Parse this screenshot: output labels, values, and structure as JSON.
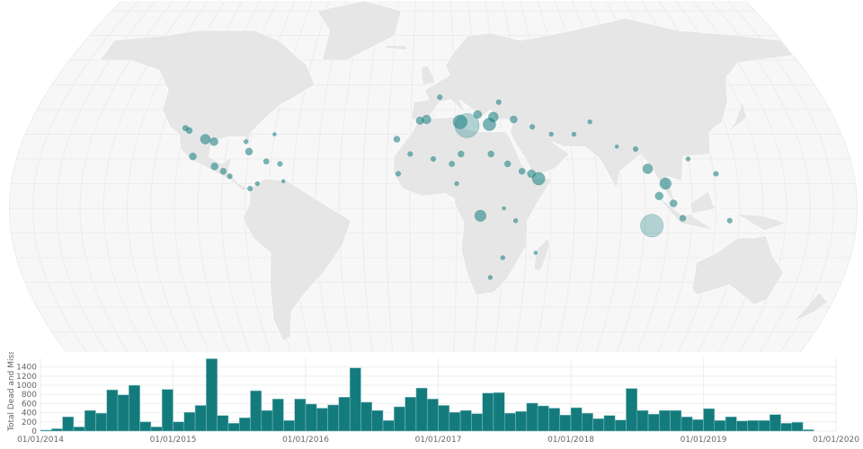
{
  "chart_data": [
    {
      "type": "scatter",
      "subtype": "bubble-map",
      "projection": "robinson",
      "land_color": "#e6e6e6",
      "ocean_color": "#f7f7f7",
      "marker_color": "#147b7d",
      "points": [
        {
          "lon": 15,
          "lat": 33.5,
          "value": 900
        },
        {
          "lon": 12,
          "lat": 35,
          "value": 300
        },
        {
          "lon": 25,
          "lat": 34,
          "value": 250
        },
        {
          "lon": 27,
          "lat": 37,
          "value": 150
        },
        {
          "lon": 20,
          "lat": 38,
          "value": 100
        },
        {
          "lon": -3,
          "lat": 36,
          "value": 120
        },
        {
          "lon": -6,
          "lat": 35.5,
          "value": 90
        },
        {
          "lon": -16,
          "lat": 28,
          "value": 60
        },
        {
          "lon": 3,
          "lat": 45,
          "value": 40
        },
        {
          "lon": 30,
          "lat": 43,
          "value": 40
        },
        {
          "lon": 36,
          "lat": 36,
          "value": 80
        },
        {
          "lon": 44,
          "lat": 33,
          "value": 40
        },
        {
          "lon": 52,
          "lat": 30,
          "value": 30
        },
        {
          "lon": 62,
          "lat": 30,
          "value": 30
        },
        {
          "lon": 70,
          "lat": 35,
          "value": 30
        },
        {
          "lon": 45,
          "lat": 12,
          "value": 250
        },
        {
          "lon": 42,
          "lat": 14,
          "value": 100
        },
        {
          "lon": 38,
          "lat": 15,
          "value": 60
        },
        {
          "lon": 32,
          "lat": 18,
          "value": 60
        },
        {
          "lon": 25,
          "lat": 22,
          "value": 60
        },
        {
          "lon": 12,
          "lat": 22,
          "value": 60
        },
        {
          "lon": 8,
          "lat": 18,
          "value": 50
        },
        {
          "lon": 0,
          "lat": 20,
          "value": 40
        },
        {
          "lon": -10,
          "lat": 22,
          "value": 40
        },
        {
          "lon": -15,
          "lat": 14,
          "value": 40
        },
        {
          "lon": 10,
          "lat": 10,
          "value": 30
        },
        {
          "lon": 30,
          "lat": 0,
          "value": 20
        },
        {
          "lon": 20,
          "lat": -3,
          "value": 200
        },
        {
          "lon": 35,
          "lat": -5,
          "value": 30
        },
        {
          "lon": 30,
          "lat": -20,
          "value": 30
        },
        {
          "lon": 25,
          "lat": -28,
          "value": 30
        },
        {
          "lon": 44,
          "lat": -18,
          "value": 20
        },
        {
          "lon": 93,
          "lat": -7,
          "value": 800
        },
        {
          "lon": 92,
          "lat": 16,
          "value": 150
        },
        {
          "lon": 96,
          "lat": 5,
          "value": 100
        },
        {
          "lon": 99,
          "lat": 10,
          "value": 200
        },
        {
          "lon": 102,
          "lat": 2,
          "value": 80
        },
        {
          "lon": 106,
          "lat": -4,
          "value": 60
        },
        {
          "lon": 110,
          "lat": 20,
          "value": 30
        },
        {
          "lon": 121,
          "lat": 14,
          "value": 40
        },
        {
          "lon": 126,
          "lat": -5,
          "value": 40
        },
        {
          "lon": 88,
          "lat": 24,
          "value": 40
        },
        {
          "lon": 80,
          "lat": 25,
          "value": 20
        },
        {
          "lon": -108,
          "lat": 31.5,
          "value": 60
        },
        {
          "lon": -100,
          "lat": 28,
          "value": 150
        },
        {
          "lon": -96,
          "lat": 27,
          "value": 100
        },
        {
          "lon": -110,
          "lat": 32.5,
          "value": 50
        },
        {
          "lon": -104,
          "lat": 21,
          "value": 80
        },
        {
          "lon": -94,
          "lat": 17,
          "value": 80
        },
        {
          "lon": -90,
          "lat": 15,
          "value": 60
        },
        {
          "lon": -87,
          "lat": 13,
          "value": 40
        },
        {
          "lon": -80,
          "lat": 23,
          "value": 80
        },
        {
          "lon": -72,
          "lat": 19,
          "value": 50
        },
        {
          "lon": -66,
          "lat": 18,
          "value": 40
        },
        {
          "lon": -78,
          "lat": 8,
          "value": 40
        },
        {
          "lon": -82,
          "lat": 27,
          "value": 30
        },
        {
          "lon": -75,
          "lat": 10,
          "value": 30
        },
        {
          "lon": -64,
          "lat": 11,
          "value": 20
        },
        {
          "lon": -70,
          "lat": 30,
          "value": 20
        }
      ]
    },
    {
      "type": "bar",
      "xlabel": "",
      "ylabel": "Total Dead and Missing",
      "ylim": [
        0,
        1590
      ],
      "yticks": [
        0,
        200,
        400,
        600,
        800,
        1000,
        1200,
        1400
      ],
      "xticks": [
        "01/01/2014",
        "01/01/2015",
        "01/01/2016",
        "01/01/2017",
        "01/01/2018",
        "01/01/2019",
        "01/01/2020"
      ],
      "grid": true,
      "bar_color": "#147b7d",
      "start_month": "2014-01",
      "interval": "month",
      "values": [
        20,
        50,
        310,
        90,
        450,
        390,
        900,
        790,
        1000,
        200,
        90,
        910,
        200,
        410,
        560,
        1580,
        340,
        170,
        290,
        880,
        450,
        700,
        230,
        700,
        590,
        500,
        570,
        740,
        1380,
        630,
        450,
        230,
        530,
        740,
        940,
        700,
        560,
        410,
        450,
        380,
        830,
        840,
        390,
        430,
        610,
        550,
        500,
        350,
        510,
        390,
        270,
        340,
        240,
        930,
        450,
        370,
        450,
        450,
        310,
        250,
        490,
        230,
        310,
        220,
        230,
        230,
        360,
        170,
        190,
        30
      ]
    }
  ]
}
